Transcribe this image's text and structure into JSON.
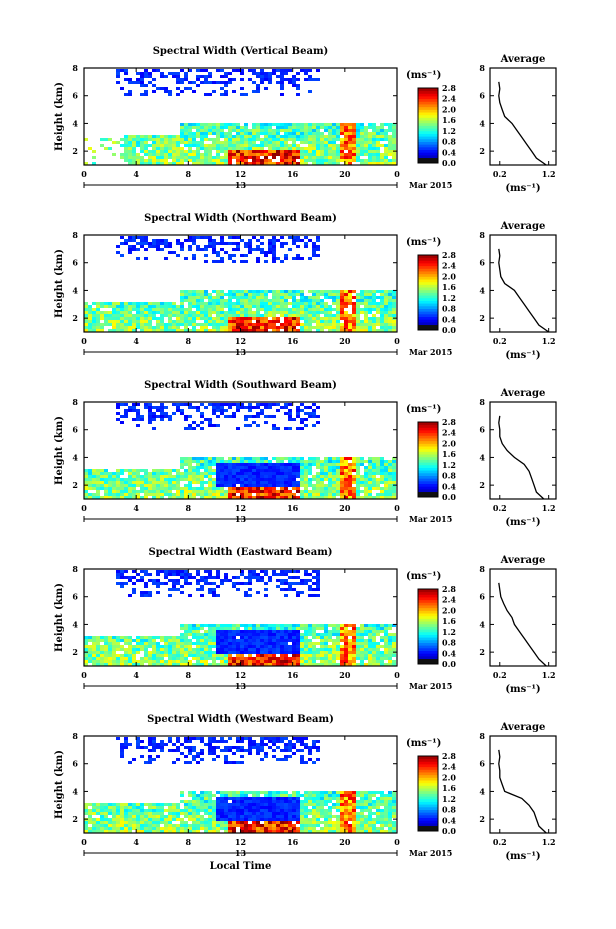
{
  "chart_data": [
    {
      "type": "heatmap",
      "title": "Spectral Width (Vertical Beam)",
      "ylabel": "Height (km)",
      "xticks": [
        "0",
        "4",
        "8",
        "12",
        "16",
        "20",
        "0"
      ],
      "yticks": [
        "2",
        "4",
        "6",
        "8"
      ],
      "xlim": [
        0,
        24
      ],
      "ylim": [
        1,
        8
      ],
      "date_day": "13",
      "date_month": "Mar 2015",
      "colorbar_unit": "(ms⁻¹)",
      "colorbar_ticks": [
        "0.0",
        "0.4",
        "0.8",
        "1.2",
        "1.6",
        "2.0",
        "2.4",
        "2.8"
      ],
      "profile": {
        "title": "Average",
        "xticks": [
          "0.2",
          "1.2"
        ],
        "xlabel": "(ms⁻¹)",
        "yticks": [
          "2",
          "4",
          "6",
          "8"
        ],
        "height": [
          1.0,
          1.5,
          2.0,
          2.5,
          3.0,
          3.5,
          4.0,
          4.5,
          5.0,
          5.5,
          6.0,
          6.5,
          7.0
        ],
        "values": [
          1.15,
          0.95,
          0.85,
          0.75,
          0.65,
          0.55,
          0.45,
          0.3,
          0.25,
          0.2,
          0.18,
          0.2,
          0.18
        ]
      }
    },
    {
      "type": "heatmap",
      "title": "Spectral Width (Northward Beam)",
      "ylabel": "Height (km)",
      "xticks": [
        "0",
        "4",
        "8",
        "12",
        "16",
        "20",
        "0"
      ],
      "yticks": [
        "2",
        "4",
        "6",
        "8"
      ],
      "xlim": [
        0,
        24
      ],
      "ylim": [
        1,
        8
      ],
      "date_day": "13",
      "date_month": "Mar 2015",
      "colorbar_unit": "(ms⁻¹)",
      "colorbar_ticks": [
        "0.0",
        "0.4",
        "0.8",
        "1.2",
        "1.6",
        "2.0",
        "2.4",
        "2.8"
      ],
      "profile": {
        "title": "Average",
        "xticks": [
          "0.2",
          "1.2"
        ],
        "xlabel": "(ms⁻¹)",
        "yticks": [
          "2",
          "4",
          "6",
          "8"
        ],
        "height": [
          1.0,
          1.5,
          2.0,
          2.5,
          3.0,
          3.5,
          4.0,
          4.5,
          5.0,
          5.5,
          6.0,
          6.5,
          7.0
        ],
        "values": [
          1.2,
          1.0,
          0.9,
          0.8,
          0.7,
          0.6,
          0.5,
          0.3,
          0.22,
          0.2,
          0.18,
          0.2,
          0.18
        ]
      }
    },
    {
      "type": "heatmap",
      "title": "Spectral Width (Southward Beam)",
      "ylabel": "Height (km)",
      "xticks": [
        "0",
        "4",
        "8",
        "12",
        "16",
        "20",
        "0"
      ],
      "yticks": [
        "2",
        "4",
        "6",
        "8"
      ],
      "xlim": [
        0,
        24
      ],
      "ylim": [
        1,
        8
      ],
      "date_day": "13",
      "date_month": "Mar 2015",
      "colorbar_unit": "(ms⁻¹)",
      "colorbar_ticks": [
        "0.0",
        "0.4",
        "0.8",
        "1.2",
        "1.6",
        "2.0",
        "2.4",
        "2.8"
      ],
      "profile": {
        "title": "Average",
        "xticks": [
          "0.2",
          "1.2"
        ],
        "xlabel": "(ms⁻¹)",
        "yticks": [
          "2",
          "4",
          "6",
          "8"
        ],
        "height": [
          1.0,
          1.5,
          2.0,
          2.5,
          3.0,
          3.5,
          4.0,
          4.5,
          5.0,
          5.5,
          6.0,
          6.5,
          7.0
        ],
        "values": [
          1.1,
          0.95,
          0.9,
          0.85,
          0.8,
          0.7,
          0.5,
          0.35,
          0.25,
          0.2,
          0.2,
          0.18,
          0.2
        ]
      }
    },
    {
      "type": "heatmap",
      "title": "Spectral Width (Eastward Beam)",
      "ylabel": "Height (km)",
      "xticks": [
        "0",
        "4",
        "8",
        "12",
        "16",
        "20",
        "0"
      ],
      "yticks": [
        "2",
        "4",
        "6",
        "8"
      ],
      "xlim": [
        0,
        24
      ],
      "ylim": [
        1,
        8
      ],
      "date_day": "13",
      "date_month": "Mar 2015",
      "colorbar_unit": "(ms⁻¹)",
      "colorbar_ticks": [
        "0.0",
        "0.4",
        "0.8",
        "1.2",
        "1.6",
        "2.0",
        "2.4",
        "2.8"
      ],
      "profile": {
        "title": "Average",
        "xticks": [
          "0.2",
          "1.2"
        ],
        "xlabel": "(ms⁻¹)",
        "yticks": [
          "2",
          "4",
          "6",
          "8"
        ],
        "height": [
          1.0,
          1.5,
          2.0,
          2.5,
          3.0,
          3.5,
          4.0,
          4.5,
          5.0,
          5.5,
          6.0,
          6.5,
          7.0
        ],
        "values": [
          1.15,
          1.0,
          0.9,
          0.8,
          0.7,
          0.6,
          0.5,
          0.45,
          0.35,
          0.28,
          0.22,
          0.2,
          0.18
        ]
      }
    },
    {
      "type": "heatmap",
      "title": "Spectral Width (Westward Beam)",
      "ylabel": "Height (km)",
      "xticks": [
        "0",
        "4",
        "8",
        "12",
        "16",
        "20",
        "0"
      ],
      "yticks": [
        "2",
        "4",
        "6",
        "8"
      ],
      "xlim": [
        0,
        24
      ],
      "ylim": [
        1,
        8
      ],
      "date_day": "13",
      "date_month": "Mar 2015",
      "colorbar_unit": "(ms⁻¹)",
      "colorbar_ticks": [
        "0.0",
        "0.4",
        "0.8",
        "1.2",
        "1.6",
        "2.0",
        "2.4",
        "2.8"
      ],
      "xlabel": "Local Time",
      "profile": {
        "title": "Average",
        "xticks": [
          "0.2",
          "1.2"
        ],
        "xlabel": "(ms⁻¹)",
        "yticks": [
          "2",
          "4",
          "6",
          "8"
        ],
        "height": [
          1.0,
          1.5,
          2.0,
          2.5,
          3.0,
          3.5,
          4.0,
          4.5,
          5.0,
          5.5,
          6.0,
          6.5,
          7.0
        ],
        "values": [
          1.15,
          1.0,
          0.95,
          0.9,
          0.8,
          0.65,
          0.3,
          0.25,
          0.2,
          0.2,
          0.18,
          0.2,
          0.18
        ]
      }
    }
  ]
}
